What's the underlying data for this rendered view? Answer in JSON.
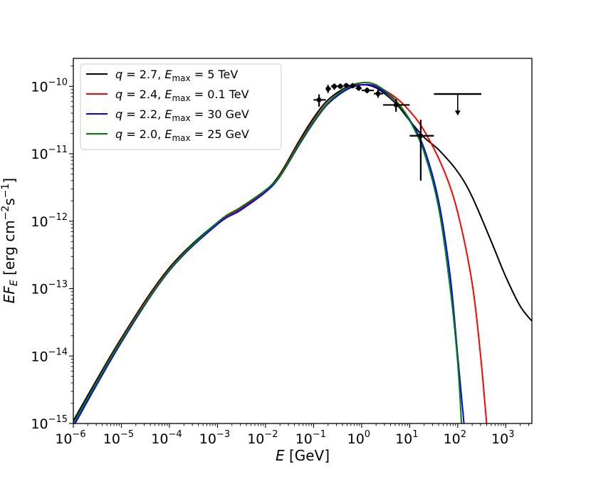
{
  "chart_data": {
    "type": "line",
    "xscale": "log",
    "yscale": "log",
    "xlim": [
      1e-06,
      3500
    ],
    "ylim": [
      1e-15,
      2.6e-10
    ],
    "xlabel": {
      "main": "E",
      "unit": "[GeV]"
    },
    "ylabel": {
      "main": "EF",
      "sub": "E",
      "unit_pre": "[erg cm",
      "exp1": "−2",
      "unit_mid": "s",
      "exp2": "−1",
      "unit_post": "]"
    },
    "x_ticks": [
      {
        "value": 1e-06,
        "base": "10",
        "exp": "−6"
      },
      {
        "value": 1e-05,
        "base": "10",
        "exp": "−5"
      },
      {
        "value": 0.0001,
        "base": "10",
        "exp": "−4"
      },
      {
        "value": 0.001,
        "base": "10",
        "exp": "−3"
      },
      {
        "value": 0.01,
        "base": "10",
        "exp": "−2"
      },
      {
        "value": 0.1,
        "base": "10",
        "exp": "−1"
      },
      {
        "value": 1,
        "base": "10",
        "exp": "0"
      },
      {
        "value": 10,
        "base": "10",
        "exp": "1"
      },
      {
        "value": 100,
        "base": "10",
        "exp": "2"
      },
      {
        "value": 1000,
        "base": "10",
        "exp": "3"
      }
    ],
    "y_ticks": [
      {
        "value": 1e-15,
        "base": "10",
        "exp": "−15"
      },
      {
        "value": 1e-14,
        "base": "10",
        "exp": "−14"
      },
      {
        "value": 1e-13,
        "base": "10",
        "exp": "−13"
      },
      {
        "value": 1e-12,
        "base": "10",
        "exp": "−12"
      },
      {
        "value": 1e-11,
        "base": "10",
        "exp": "−11"
      },
      {
        "value": 1e-10,
        "base": "10",
        "exp": "−10"
      }
    ],
    "series": [
      {
        "name": "q = 2.7, Emax = 5 TeV",
        "label": {
          "q": "2.7",
          "emax": "5 TeV"
        },
        "color": "#000000",
        "points": [
          [
            1e-06,
            1.1e-15
          ],
          [
            1e-05,
            1.85e-14
          ],
          [
            0.0001,
            2.05e-13
          ],
          [
            0.001,
            9.6e-13
          ],
          [
            0.003,
            1.55e-12
          ],
          [
            0.01,
            2.85e-12
          ],
          [
            0.02,
            5e-12
          ],
          [
            0.05,
            1.55e-11
          ],
          [
            0.1,
            3.4e-11
          ],
          [
            0.2,
            6.3e-11
          ],
          [
            0.5,
            9.8e-11
          ],
          [
            1,
            1.06e-10
          ],
          [
            2,
            9.5e-11
          ],
          [
            5,
            5.7e-11
          ],
          [
            10,
            3.1e-11
          ],
          [
            20,
            1.75e-11
          ],
          [
            40,
            1.15e-11
          ],
          [
            100,
            5.4e-12
          ],
          [
            200,
            2.3e-12
          ],
          [
            500,
            5e-13
          ],
          [
            1000,
            1.5e-13
          ],
          [
            2000,
            5.5e-14
          ],
          [
            3500,
            3.3e-14
          ]
        ]
      },
      {
        "name": "q = 2.4, Emax = 0.1 TeV",
        "label": {
          "q": "2.4",
          "emax": "0.1 TeV"
        },
        "color": "#ff0000",
        "points": [
          [
            1e-06,
            1e-15
          ],
          [
            1e-05,
            1.75e-14
          ],
          [
            0.0001,
            1.95e-13
          ],
          [
            0.001,
            9.3e-13
          ],
          [
            0.003,
            1.5e-12
          ],
          [
            0.01,
            2.75e-12
          ],
          [
            0.02,
            4.8e-12
          ],
          [
            0.05,
            1.45e-11
          ],
          [
            0.1,
            3.1e-11
          ],
          [
            0.2,
            5.8e-11
          ],
          [
            0.5,
            9.5e-11
          ],
          [
            1,
            1.06e-10
          ],
          [
            2,
            1.01e-10
          ],
          [
            5,
            6.9e-11
          ],
          [
            10,
            4.3e-11
          ],
          [
            20,
            2.2e-11
          ],
          [
            50,
            6e-12
          ],
          [
            100,
            1.35e-12
          ],
          [
            200,
            1.2e-13
          ],
          [
            300,
            1e-14
          ],
          [
            400,
            1e-15
          ]
        ]
      },
      {
        "name": "q = 2.2, Emax = 30 GeV",
        "label": {
          "q": "2.2",
          "emax": "30 GeV"
        },
        "color": "#0000ff",
        "points": [
          [
            1e-06,
            9e-16
          ],
          [
            1e-05,
            1.6e-14
          ],
          [
            0.0001,
            1.85e-13
          ],
          [
            0.001,
            9e-13
          ],
          [
            0.003,
            1.45e-12
          ],
          [
            0.01,
            2.7e-12
          ],
          [
            0.02,
            4.6e-12
          ],
          [
            0.05,
            1.35e-11
          ],
          [
            0.1,
            2.9e-11
          ],
          [
            0.2,
            5.5e-11
          ],
          [
            0.5,
            9e-11
          ],
          [
            1,
            1.05e-10
          ],
          [
            2,
            9.8e-11
          ],
          [
            5,
            6.2e-11
          ],
          [
            10,
            3.2e-11
          ],
          [
            20,
            1.2e-11
          ],
          [
            40,
            2e-12
          ],
          [
            70,
            1.5e-13
          ],
          [
            100,
            1e-14
          ],
          [
            135,
            1e-15
          ]
        ]
      },
      {
        "name": "q = 2.0, Emax = 25 GeV",
        "label": {
          "q": "2.0",
          "emax": "25 GeV"
        },
        "color": "#008000",
        "points": [
          [
            1e-06,
            1e-15
          ],
          [
            1e-05,
            1.7e-14
          ],
          [
            0.0001,
            1.9e-13
          ],
          [
            0.001,
            9.6e-13
          ],
          [
            0.003,
            1.6e-12
          ],
          [
            0.01,
            2.9e-12
          ],
          [
            0.02,
            4.7e-12
          ],
          [
            0.05,
            1.4e-11
          ],
          [
            0.1,
            3e-11
          ],
          [
            0.2,
            5.7e-11
          ],
          [
            0.5,
            9.6e-11
          ],
          [
            1,
            1.13e-10
          ],
          [
            2,
            1.05e-10
          ],
          [
            5,
            6.3e-11
          ],
          [
            10,
            3.1e-11
          ],
          [
            20,
            1.05e-11
          ],
          [
            40,
            1.6e-12
          ],
          [
            70,
            1e-13
          ],
          [
            100,
            8e-15
          ],
          [
            120,
            1e-15
          ]
        ]
      }
    ],
    "data_points": [
      {
        "x": 0.13,
        "y": 6.3e-11,
        "xlo": 0.1,
        "xhi": 0.18,
        "ylo": 5e-11,
        "yhi": 7.6e-11
      },
      {
        "x": 0.2,
        "y": 9.2e-11,
        "xlo": 0.18,
        "xhi": 0.23,
        "ylo": 8e-11,
        "yhi": 1.05e-10
      },
      {
        "x": 0.27,
        "y": 1e-10,
        "xlo": 0.23,
        "xhi": 0.31,
        "ylo": 8.9e-11,
        "yhi": 1.1e-10
      },
      {
        "x": 0.36,
        "y": 1e-10,
        "xlo": 0.31,
        "xhi": 0.42,
        "ylo": 9.2e-11,
        "yhi": 1.1e-10
      },
      {
        "x": 0.48,
        "y": 1.03e-10,
        "xlo": 0.42,
        "xhi": 0.56,
        "ylo": 9.5e-11,
        "yhi": 1.12e-10
      },
      {
        "x": 0.65,
        "y": 1.02e-10,
        "xlo": 0.56,
        "xhi": 0.75,
        "ylo": 9.4e-11,
        "yhi": 1.12e-10
      },
      {
        "x": 0.87,
        "y": 9.4e-11,
        "xlo": 0.75,
        "xhi": 1.0,
        "ylo": 8.6e-11,
        "yhi": 1.03e-10
      },
      {
        "x": 1.3,
        "y": 8.7e-11,
        "xlo": 1.0,
        "xhi": 1.8,
        "ylo": 7.9e-11,
        "yhi": 9.6e-11
      },
      {
        "x": 2.2,
        "y": 7.8e-11,
        "xlo": 1.8,
        "xhi": 2.8,
        "ylo": 6.8e-11,
        "yhi": 8.9e-11
      },
      {
        "x": 5.2,
        "y": 5.3e-11,
        "xlo": 2.8,
        "xhi": 10,
        "ylo": 4.2e-11,
        "yhi": 6.5e-11
      },
      {
        "x": 17,
        "y": 1.85e-11,
        "xlo": 10,
        "xhi": 32,
        "ylo": 4e-12,
        "yhi": 3.2e-11
      }
    ],
    "upper_limit": {
      "x": 100,
      "y": 7.7e-11,
      "xlo": 32,
      "xhi": 310,
      "arrow_to": 3.7e-11
    },
    "legend_position": "upper-left"
  }
}
